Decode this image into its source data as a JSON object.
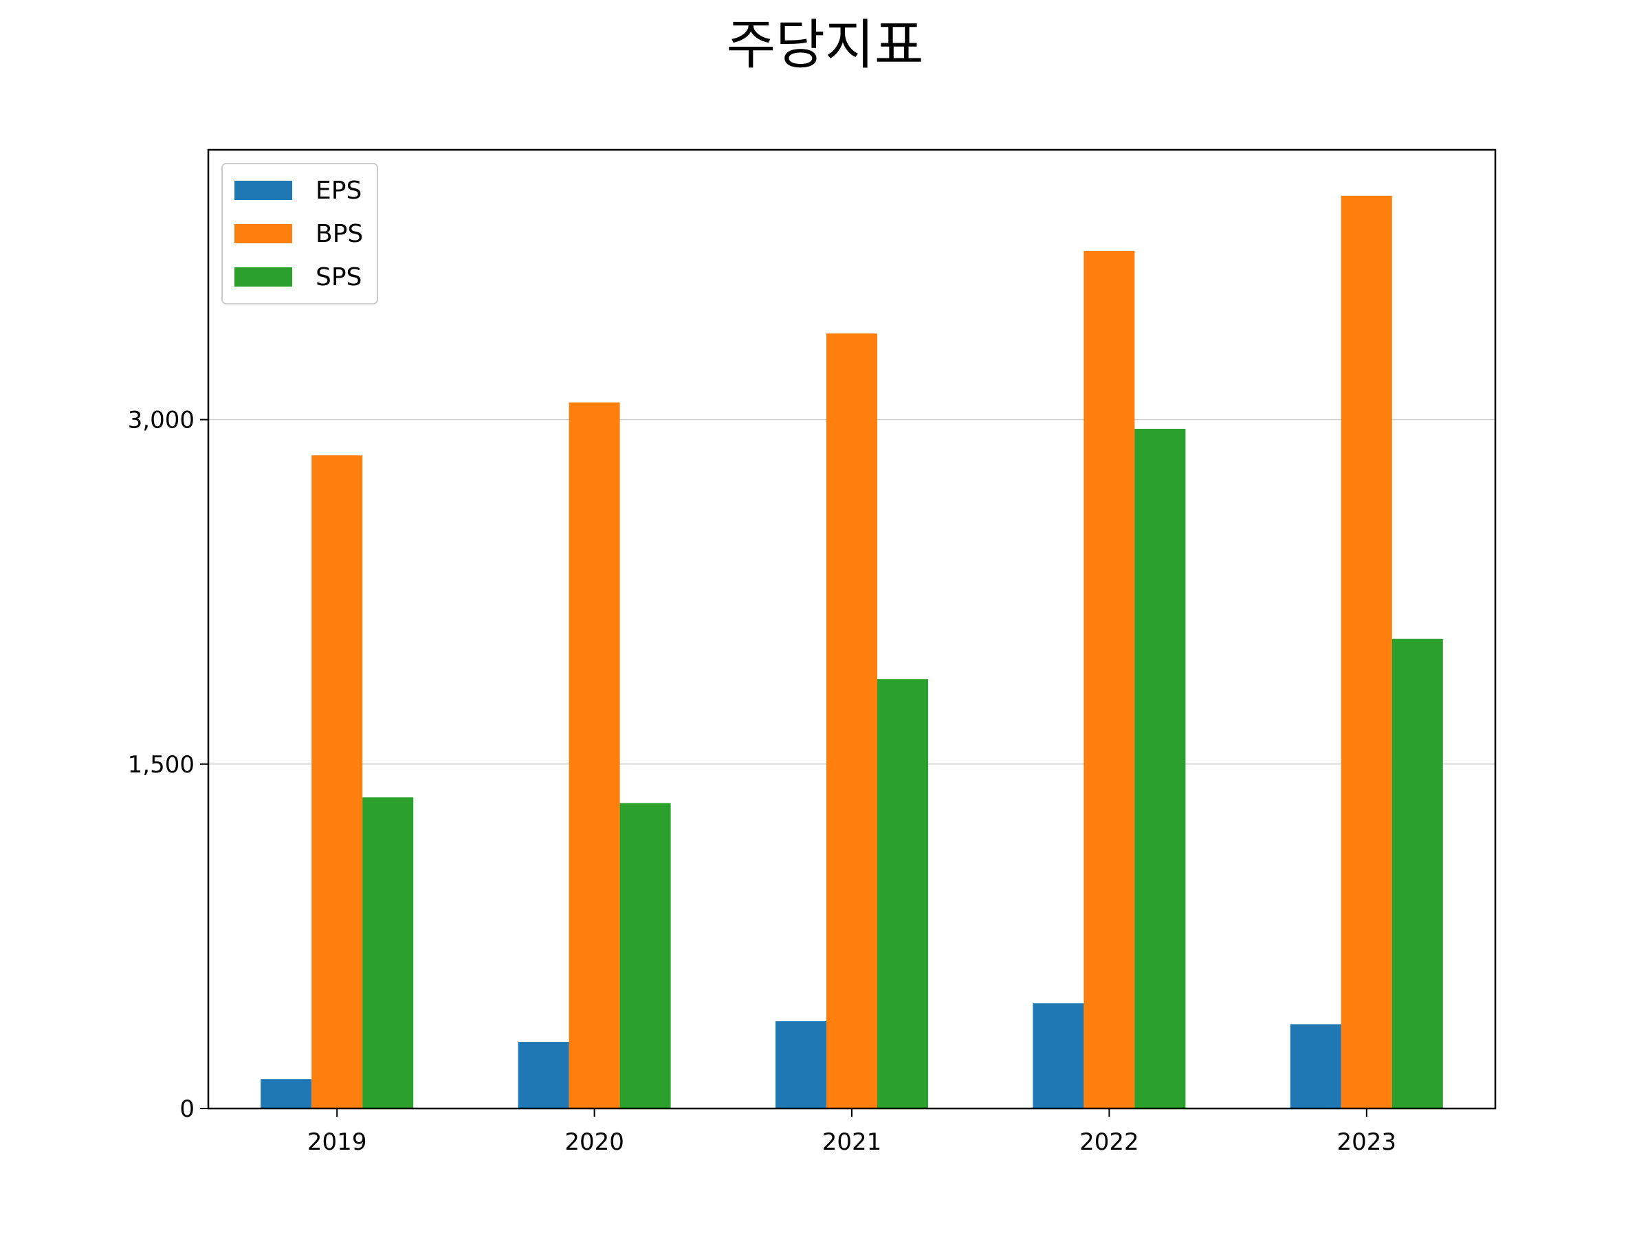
{
  "chart_data": {
    "type": "bar",
    "title": "주당지표",
    "xlabel": "",
    "ylabel": "",
    "categories": [
      "2019",
      "2020",
      "2021",
      "2022",
      "2023"
    ],
    "series": [
      {
        "name": "EPS",
        "color": "#1f77b4",
        "values": [
          128,
          290,
          380,
          458,
          367
        ]
      },
      {
        "name": "BPS",
        "color": "#ff7f0e",
        "values": [
          2845,
          3075,
          3375,
          3735,
          3975
        ]
      },
      {
        "name": "SPS",
        "color": "#2ca02c",
        "values": [
          1355,
          1330,
          1870,
          2960,
          2045
        ]
      }
    ],
    "ylim": [
      0,
      4175
    ],
    "yticks": [
      0,
      1500,
      3000
    ],
    "ytick_labels": [
      "0",
      "1,500",
      "3,000"
    ],
    "grid": "horizontal",
    "legend_position": "upper-left"
  }
}
